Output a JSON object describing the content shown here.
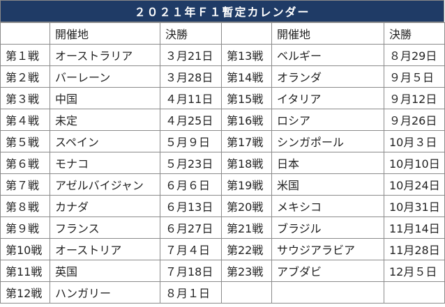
{
  "title": "２０２１年Ｆ１暫定カレンダー",
  "headers": {
    "venue": "開催地",
    "final": "決勝"
  },
  "left": [
    {
      "round": "第１戦",
      "name": "オーストラリア",
      "date": "３月21日"
    },
    {
      "round": "第２戦",
      "name": "バーレーン",
      "date": "３月28日"
    },
    {
      "round": "第３戦",
      "name": "中国",
      "date": "４月11日"
    },
    {
      "round": "第４戦",
      "name": "未定",
      "date": "４月25日"
    },
    {
      "round": "第５戦",
      "name": "スペイン",
      "date": "５月９日"
    },
    {
      "round": "第６戦",
      "name": "モナコ",
      "date": "５月23日"
    },
    {
      "round": "第７戦",
      "name": "アゼルバイジャン",
      "date": "６月６日"
    },
    {
      "round": "第８戦",
      "name": "カナダ",
      "date": "６月13日"
    },
    {
      "round": "第９戦",
      "name": "フランス",
      "date": "６月27日"
    },
    {
      "round": "第10戦",
      "name": "オーストリア",
      "date": "７月４日"
    },
    {
      "round": "第11戦",
      "name": "英国",
      "date": "７月18日"
    },
    {
      "round": "第12戦",
      "name": "ハンガリー",
      "date": "８月１日"
    }
  ],
  "right": [
    {
      "round": "第13戦",
      "name": "ベルギー",
      "date": "８月29日"
    },
    {
      "round": "第14戦",
      "name": "オランダ",
      "date": "９月５日"
    },
    {
      "round": "第15戦",
      "name": "イタリア",
      "date": "９月12日"
    },
    {
      "round": "第16戦",
      "name": "ロシア",
      "date": "９月26日"
    },
    {
      "round": "第17戦",
      "name": "シンガポール",
      "date": "10月３日"
    },
    {
      "round": "第18戦",
      "name": "日本",
      "date": "10月10日"
    },
    {
      "round": "第19戦",
      "name": "米国",
      "date": "10月24日"
    },
    {
      "round": "第20戦",
      "name": "メキシコ",
      "date": "10月31日"
    },
    {
      "round": "第21戦",
      "name": "ブラジル",
      "date": "11月14日"
    },
    {
      "round": "第22戦",
      "name": "サウジアラビア",
      "date": "11月28日"
    },
    {
      "round": "第23戦",
      "name": "アブダビ",
      "date": "12月５日"
    },
    {
      "round": "",
      "name": "",
      "date": ""
    }
  ]
}
